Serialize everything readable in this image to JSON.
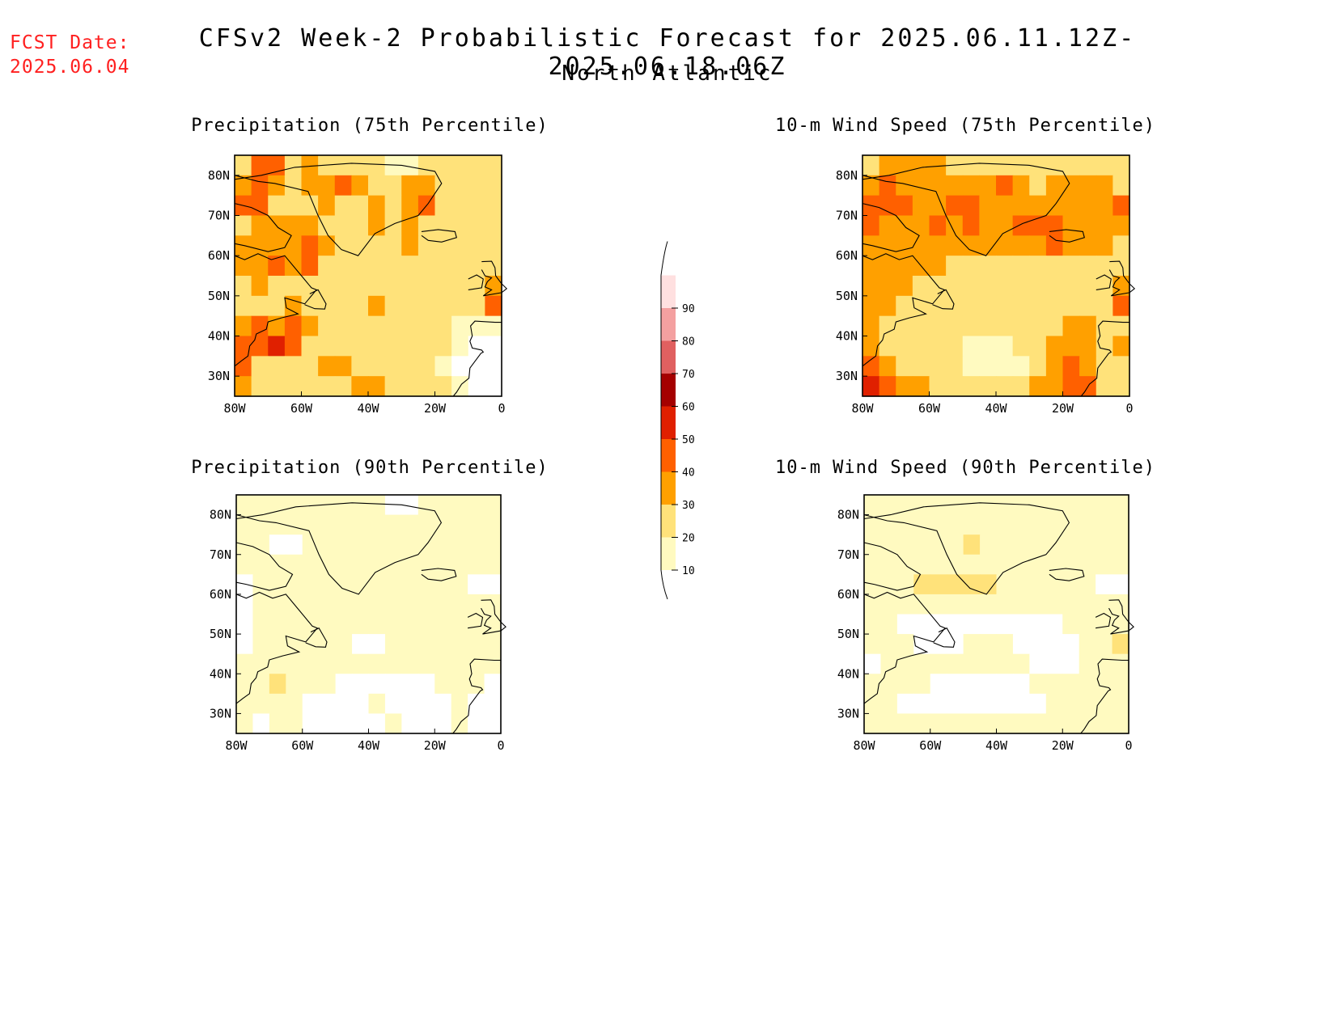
{
  "header": {
    "fcst_label": "FCST Date:",
    "fcst_date": "2025.06.04",
    "title": "CFSv2 Week-2 Probabilistic Forecast for 2025.06.11.12Z-2025.06.18.06Z",
    "region": "North Atlantic"
  },
  "axes": {
    "lon_labels": [
      "80W",
      "60W",
      "40W",
      "20W",
      "0"
    ],
    "lat_labels": [
      "80N",
      "70N",
      "60N",
      "50N",
      "40N",
      "30N"
    ],
    "lon_range": [
      -80,
      0
    ],
    "lat_range": [
      25,
      85
    ]
  },
  "panels": [
    {
      "title": "Precipitation (75th Percentile)",
      "field": "precip75"
    },
    {
      "title": "10-m Wind Speed (75th Percentile)",
      "field": "wind75"
    },
    {
      "title": "Precipitation (90th Percentile)",
      "field": "precip90"
    },
    {
      "title": "10-m Wind Speed (90th Percentile)",
      "field": "wind90"
    }
  ],
  "colorbar": {
    "levels": [
      "10",
      "20",
      "30",
      "40",
      "50",
      "60",
      "70",
      "80",
      "90"
    ],
    "colors": [
      "#fffac0",
      "#ffe27a",
      "#ffa000",
      "#ff6000",
      "#e02000",
      "#a50000",
      "#e06060",
      "#f4a0a0",
      "#ffe0e0"
    ]
  },
  "chart_data": {
    "type": "heatmap",
    "units": "probability (%)",
    "fields": {
      "precip75": [
        [
          20,
          40,
          40,
          20,
          30,
          20,
          20,
          20,
          20,
          10,
          10,
          20,
          20,
          20,
          20,
          20
        ],
        [
          30,
          40,
          30,
          20,
          30,
          30,
          40,
          30,
          20,
          20,
          30,
          30,
          20,
          20,
          20,
          20
        ],
        [
          40,
          40,
          20,
          20,
          20,
          30,
          20,
          20,
          30,
          20,
          30,
          40,
          20,
          20,
          20,
          20
        ],
        [
          20,
          30,
          30,
          30,
          30,
          20,
          20,
          20,
          30,
          20,
          30,
          20,
          20,
          20,
          20,
          20
        ],
        [
          30,
          30,
          30,
          30,
          40,
          30,
          20,
          20,
          20,
          20,
          30,
          20,
          20,
          20,
          20,
          20
        ],
        [
          30,
          30,
          40,
          30,
          40,
          20,
          20,
          20,
          20,
          20,
          20,
          20,
          20,
          20,
          20,
          20
        ],
        [
          20,
          30,
          20,
          20,
          20,
          20,
          20,
          20,
          20,
          20,
          20,
          20,
          20,
          20,
          20,
          30
        ],
        [
          20,
          20,
          20,
          30,
          20,
          20,
          20,
          20,
          30,
          20,
          20,
          20,
          20,
          20,
          20,
          40
        ],
        [
          30,
          40,
          30,
          40,
          30,
          20,
          20,
          20,
          20,
          20,
          20,
          20,
          20,
          10,
          10,
          10
        ],
        [
          40,
          40,
          50,
          40,
          20,
          20,
          20,
          20,
          20,
          20,
          20,
          20,
          20,
          10,
          0,
          0
        ],
        [
          40,
          20,
          20,
          20,
          20,
          30,
          30,
          20,
          20,
          20,
          20,
          20,
          10,
          0,
          0,
          0
        ],
        [
          30,
          20,
          20,
          20,
          20,
          20,
          20,
          30,
          30,
          20,
          20,
          20,
          20,
          10,
          0,
          0
        ]
      ],
      "wind75": [
        [
          20,
          30,
          30,
          30,
          30,
          20,
          20,
          20,
          20,
          20,
          20,
          20,
          20,
          20,
          20,
          20
        ],
        [
          30,
          40,
          30,
          30,
          30,
          30,
          30,
          30,
          40,
          30,
          20,
          30,
          30,
          30,
          30,
          20
        ],
        [
          40,
          40,
          40,
          30,
          30,
          40,
          40,
          30,
          30,
          30,
          30,
          30,
          30,
          30,
          30,
          40
        ],
        [
          40,
          30,
          30,
          30,
          40,
          30,
          40,
          30,
          30,
          40,
          40,
          40,
          30,
          30,
          30,
          30
        ],
        [
          30,
          30,
          30,
          30,
          30,
          30,
          30,
          30,
          30,
          30,
          30,
          40,
          30,
          30,
          30,
          20
        ],
        [
          30,
          30,
          30,
          30,
          30,
          20,
          20,
          20,
          20,
          20,
          20,
          20,
          20,
          20,
          20,
          20
        ],
        [
          30,
          30,
          30,
          20,
          20,
          20,
          20,
          20,
          20,
          20,
          20,
          20,
          20,
          20,
          20,
          30
        ],
        [
          30,
          30,
          20,
          20,
          20,
          20,
          20,
          20,
          20,
          20,
          20,
          20,
          20,
          20,
          20,
          40
        ],
        [
          30,
          20,
          20,
          20,
          20,
          20,
          20,
          20,
          20,
          20,
          20,
          20,
          30,
          30,
          20,
          20
        ],
        [
          30,
          20,
          20,
          20,
          20,
          20,
          10,
          10,
          10,
          20,
          20,
          30,
          30,
          30,
          20,
          30
        ],
        [
          40,
          30,
          20,
          20,
          20,
          20,
          10,
          10,
          10,
          10,
          20,
          30,
          40,
          30,
          20,
          20
        ],
        [
          50,
          40,
          30,
          30,
          20,
          20,
          20,
          20,
          20,
          20,
          30,
          30,
          40,
          40,
          20,
          20
        ]
      ],
      "precip90": [
        [
          10,
          10,
          10,
          10,
          10,
          10,
          10,
          10,
          10,
          0,
          0,
          10,
          10,
          10,
          10,
          10
        ],
        [
          10,
          10,
          10,
          10,
          10,
          10,
          10,
          10,
          10,
          10,
          10,
          10,
          10,
          10,
          10,
          10
        ],
        [
          10,
          10,
          0,
          0,
          10,
          10,
          10,
          10,
          10,
          10,
          10,
          10,
          10,
          10,
          10,
          10
        ],
        [
          10,
          10,
          10,
          10,
          10,
          10,
          10,
          10,
          10,
          10,
          10,
          10,
          10,
          10,
          10,
          10
        ],
        [
          0,
          10,
          10,
          10,
          10,
          10,
          10,
          10,
          10,
          10,
          10,
          10,
          10,
          10,
          0,
          0
        ],
        [
          0,
          10,
          10,
          10,
          10,
          10,
          10,
          10,
          10,
          10,
          10,
          10,
          10,
          10,
          10,
          10
        ],
        [
          0,
          10,
          10,
          10,
          10,
          10,
          10,
          10,
          10,
          10,
          10,
          10,
          10,
          10,
          10,
          10
        ],
        [
          0,
          10,
          10,
          10,
          10,
          10,
          10,
          0,
          0,
          10,
          10,
          10,
          10,
          10,
          10,
          10
        ],
        [
          10,
          10,
          10,
          10,
          10,
          10,
          10,
          10,
          10,
          10,
          10,
          10,
          10,
          10,
          10,
          10
        ],
        [
          10,
          10,
          20,
          10,
          10,
          10,
          0,
          0,
          0,
          0,
          0,
          0,
          10,
          10,
          10,
          0
        ],
        [
          10,
          10,
          10,
          10,
          0,
          0,
          0,
          0,
          10,
          0,
          0,
          0,
          0,
          10,
          0,
          0
        ],
        [
          10,
          0,
          10,
          10,
          0,
          0,
          0,
          0,
          0,
          10,
          0,
          0,
          0,
          10,
          0,
          0
        ]
      ],
      "wind90": [
        [
          10,
          10,
          10,
          10,
          10,
          10,
          10,
          10,
          10,
          10,
          10,
          10,
          10,
          10,
          10,
          10
        ],
        [
          10,
          10,
          10,
          10,
          10,
          10,
          10,
          10,
          10,
          10,
          10,
          10,
          10,
          10,
          10,
          10
        ],
        [
          10,
          10,
          10,
          10,
          10,
          10,
          20,
          10,
          10,
          10,
          10,
          10,
          10,
          10,
          10,
          10
        ],
        [
          10,
          10,
          10,
          10,
          10,
          10,
          10,
          10,
          10,
          10,
          10,
          10,
          10,
          10,
          10,
          10
        ],
        [
          10,
          10,
          10,
          20,
          20,
          20,
          20,
          20,
          10,
          10,
          10,
          10,
          10,
          10,
          0,
          0
        ],
        [
          10,
          10,
          10,
          10,
          10,
          10,
          10,
          10,
          10,
          10,
          10,
          10,
          10,
          10,
          10,
          10
        ],
        [
          10,
          10,
          0,
          0,
          0,
          0,
          0,
          0,
          0,
          0,
          0,
          0,
          10,
          10,
          10,
          10
        ],
        [
          10,
          10,
          10,
          0,
          0,
          0,
          10,
          10,
          10,
          0,
          0,
          0,
          0,
          10,
          10,
          20
        ],
        [
          0,
          10,
          10,
          10,
          10,
          10,
          10,
          10,
          10,
          10,
          0,
          0,
          0,
          10,
          10,
          10
        ],
        [
          10,
          10,
          10,
          10,
          0,
          0,
          0,
          0,
          0,
          0,
          10,
          10,
          10,
          10,
          10,
          10
        ],
        [
          10,
          10,
          0,
          0,
          0,
          0,
          0,
          0,
          0,
          0,
          0,
          10,
          10,
          10,
          10,
          10
        ],
        [
          10,
          10,
          10,
          10,
          10,
          10,
          10,
          10,
          10,
          10,
          10,
          10,
          10,
          10,
          10,
          10
        ]
      ]
    }
  }
}
